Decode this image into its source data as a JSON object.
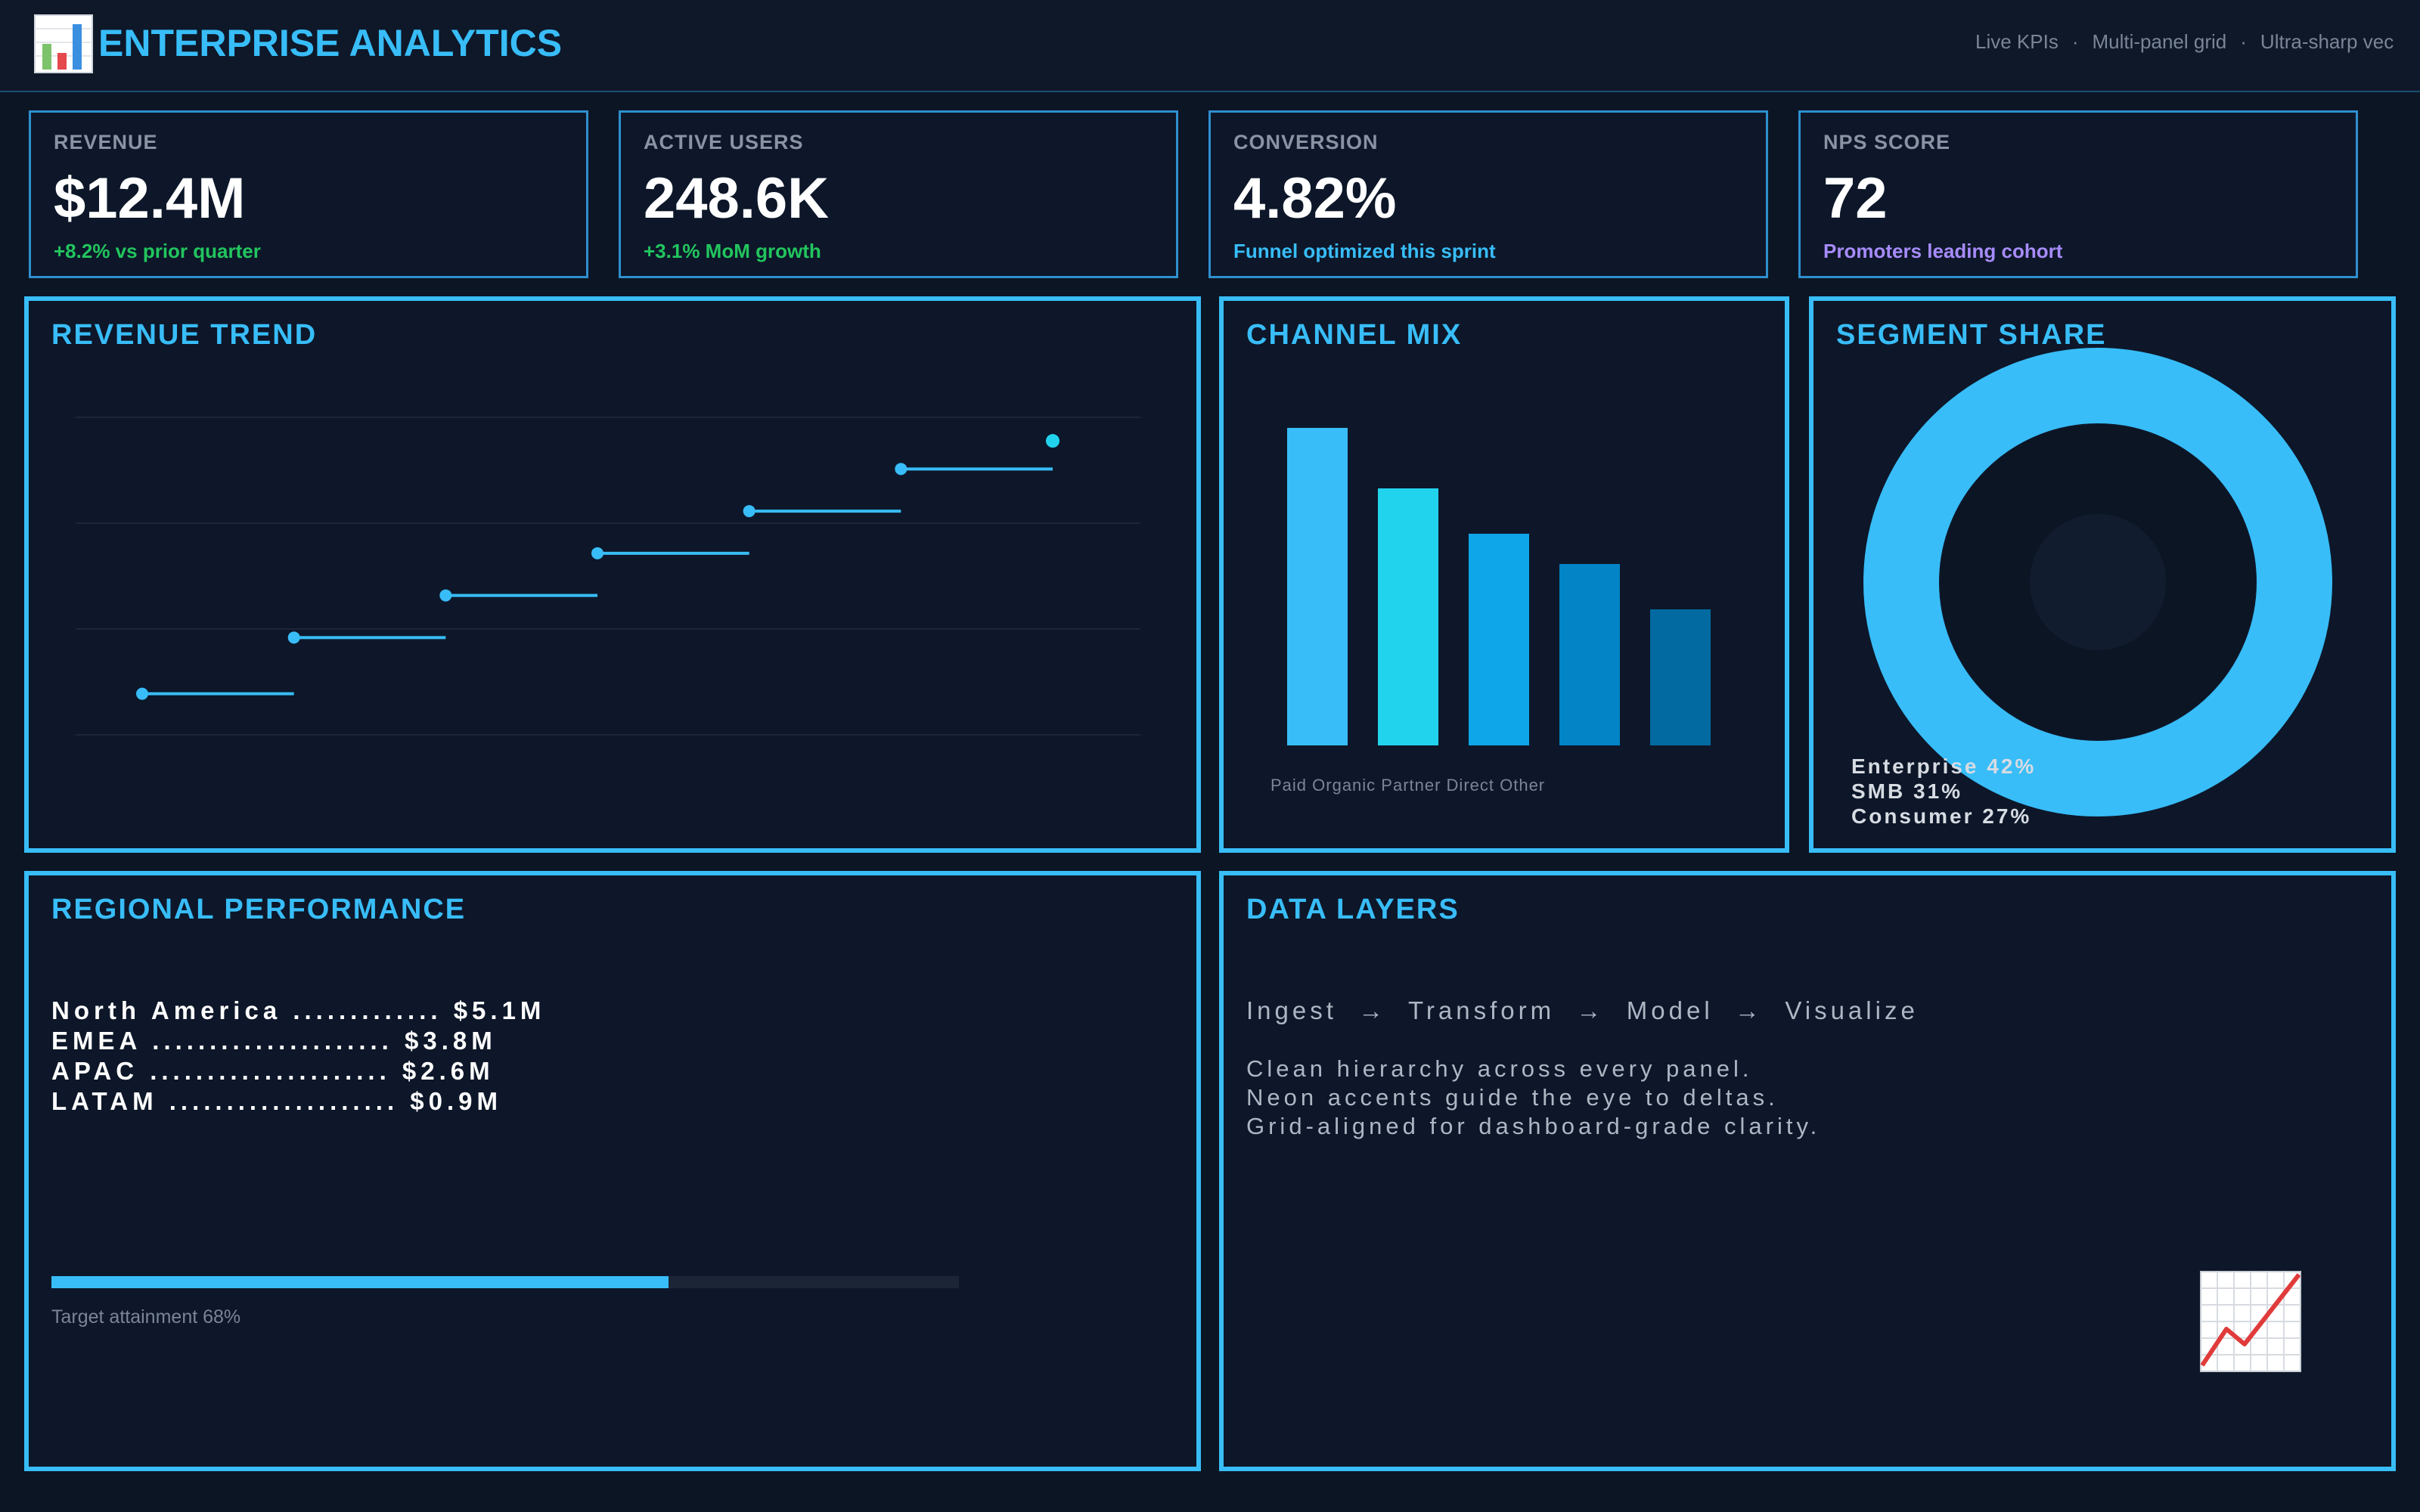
{
  "header": {
    "title": "ENTERPRISE ANALYTICS",
    "tags": [
      "Live KPIs",
      "Multi-panel grid",
      "Ultra-sharp vec"
    ],
    "logo_icon": "bar-chart-icon"
  },
  "kpis": [
    {
      "label": "REVENUE",
      "value": "$12.4M",
      "sub": "+8.2% vs prior quarter",
      "sub_color": "#22c55e"
    },
    {
      "label": "ACTIVE USERS",
      "value": "248.6K",
      "sub": "+3.1% MoM growth",
      "sub_color": "#22c55e"
    },
    {
      "label": "CONVERSION",
      "value": "4.82%",
      "sub": "Funnel optimized this sprint",
      "sub_color": "#38bdf8"
    },
    {
      "label": "NPS SCORE",
      "value": "72",
      "sub": "Promoters leading cohort",
      "sub_color": "#a78bfa"
    }
  ],
  "revenue_trend": {
    "title": "REVENUE TREND"
  },
  "channel_mix": {
    "title": "CHANNEL MIX"
  },
  "segment_share": {
    "title": "SEGMENT SHARE",
    "legend": [
      "Enterprise 42%",
      "SMB 31%",
      "Consumer 27%"
    ]
  },
  "regional": {
    "title": "REGIONAL PERFORMANCE",
    "rows": [
      "North America ............. $5.1M",
      "EMEA ..................... $3.8M",
      "APAC ..................... $2.6M",
      "LATAM .................... $0.9M"
    ],
    "progress_fraction": 0.68,
    "progress_label": "Target attainment 68%"
  },
  "data_layers": {
    "title": "DATA LAYERS",
    "flow": "Ingest  →  Transform  →  Model  →  Visualize",
    "lines": [
      "Clean hierarchy across every panel.",
      "Neon accents guide the eye to deltas.",
      "Grid-aligned for dashboard-grade clarity."
    ],
    "corner_icon": "chart-increasing-icon"
  },
  "colors": {
    "accent": "#38bdf8",
    "background": "#0c1524",
    "positive": "#22c55e",
    "purple": "#a78bfa"
  },
  "chart_data": [
    {
      "type": "line",
      "title": "REVENUE TREND",
      "x": [
        1,
        2,
        3,
        4,
        5,
        6,
        7
      ],
      "series": [
        {
          "values": [
            2.0,
            2.4,
            2.7,
            3.0,
            3.3,
            3.6,
            3.8
          ]
        }
      ],
      "ylim": [
        1.6,
        4.0
      ],
      "grid": true,
      "line_style": "step"
    },
    {
      "type": "bar",
      "title": "CHANNEL MIX",
      "categories": [
        "Paid",
        "Organic",
        "Partner",
        "Direct",
        "Other"
      ],
      "values": [
        105,
        85,
        70,
        60,
        45
      ],
      "colors": [
        "#38bdf8",
        "#22d3ee",
        "#0ea5e9",
        "#0284c7",
        "#0369a1"
      ],
      "ylim": [
        0,
        110
      ]
    },
    {
      "type": "pie",
      "title": "SEGMENT SHARE",
      "categories": [
        "Enterprise",
        "SMB",
        "Consumer"
      ],
      "values": [
        42,
        31,
        27
      ],
      "legend": "bottom-left"
    }
  ]
}
